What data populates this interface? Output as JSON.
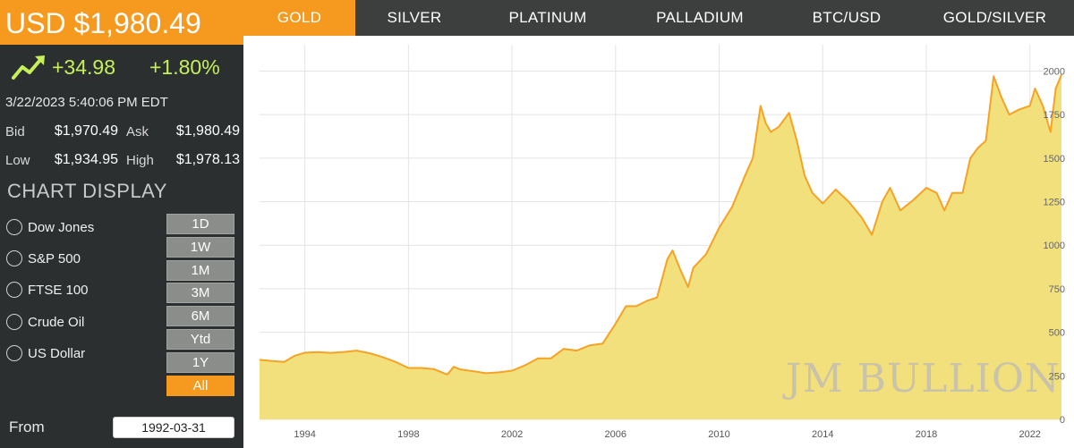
{
  "quote": {
    "price": "USD $1,980.49",
    "change_abs": "+34.98",
    "change_pct": "+1.80%",
    "timestamp": "3/22/2023 5:40:06 PM EDT",
    "bid_label": "Bid",
    "bid": "$1,970.49",
    "ask_label": "Ask",
    "ask": "$1,980.49",
    "low_label": "Low",
    "low": "$1,934.95",
    "high_label": "High",
    "high": "$1,978.13"
  },
  "chart_display": {
    "title": "CHART DISPLAY",
    "overlays": [
      "Dow Jones",
      "S&P 500",
      "FTSE 100",
      "Crude Oil",
      "US Dollar"
    ],
    "ranges": [
      "1D",
      "1W",
      "1M",
      "3M",
      "6M",
      "Ytd",
      "1Y",
      "All"
    ],
    "active_range": "All",
    "from_label": "From",
    "from_value": "1992-03-31"
  },
  "tabs": [
    "GOLD",
    "SILVER",
    "PLATINUM",
    "PALLADIUM",
    "BTC/USD",
    "GOLD/SILVER"
  ],
  "active_tab": "GOLD",
  "watermark": "JM BULLION",
  "colors": {
    "accent": "#f59a1f",
    "sidebar_bg": "#2b2f2f",
    "tabbar_bg": "#3c3f3e",
    "positive": "#c6f05a",
    "area_fill": "#f2e07c",
    "line": "#f5a225",
    "grid": "#e4e4e4"
  },
  "chart_data": {
    "type": "area",
    "x_ticks": [
      "1994",
      "1998",
      "2002",
      "2006",
      "2010",
      "2014",
      "2018",
      "2022"
    ],
    "y_ticks": [
      0,
      250,
      500,
      750,
      1000,
      1250,
      1500,
      1750,
      2000
    ],
    "xlim": [
      1992.25,
      2023.22
    ],
    "ylim": [
      0,
      2100
    ],
    "grid": true,
    "series": [
      {
        "x": [
          1992.25,
          1992.7,
          1993.2,
          1993.6,
          1994.0,
          1994.5,
          1995.0,
          1995.5,
          1996.0,
          1996.5,
          1997.0,
          1997.5,
          1998.0,
          1998.5,
          1999.0,
          1999.5,
          1999.75,
          2000.0,
          2000.5,
          2001.0,
          2001.5,
          2002.0,
          2002.5,
          2003.0,
          2003.5,
          2004.0,
          2004.5,
          2005.0,
          2005.5,
          2006.0,
          2006.4,
          2006.8,
          2007.2,
          2007.6,
          2008.0,
          2008.2,
          2008.5,
          2008.8,
          2009.0,
          2009.5,
          2010.0,
          2010.5,
          2011.0,
          2011.3,
          2011.6,
          2011.8,
          2012.0,
          2012.3,
          2012.7,
          2013.0,
          2013.3,
          2013.6,
          2014.0,
          2014.5,
          2015.0,
          2015.5,
          2015.9,
          2016.3,
          2016.6,
          2017.0,
          2017.5,
          2018.0,
          2018.4,
          2018.7,
          2019.0,
          2019.4,
          2019.7,
          2020.0,
          2020.3,
          2020.6,
          2020.9,
          2021.2,
          2021.6,
          2022.0,
          2022.2,
          2022.5,
          2022.8,
          2023.0,
          2023.22
        ],
        "y": [
          342,
          336,
          330,
          365,
          383,
          386,
          382,
          387,
          395,
          380,
          358,
          330,
          295,
          295,
          288,
          257,
          302,
          287,
          277,
          265,
          270,
          280,
          310,
          350,
          350,
          405,
          395,
          425,
          435,
          550,
          650,
          650,
          680,
          700,
          920,
          970,
          860,
          760,
          870,
          950,
          1100,
          1220,
          1400,
          1500,
          1800,
          1700,
          1650,
          1680,
          1760,
          1600,
          1400,
          1300,
          1240,
          1320,
          1250,
          1160,
          1060,
          1250,
          1330,
          1200,
          1260,
          1330,
          1300,
          1200,
          1300,
          1300,
          1500,
          1560,
          1600,
          1970,
          1850,
          1750,
          1780,
          1800,
          1900,
          1800,
          1650,
          1900,
          1980
        ]
      }
    ]
  }
}
